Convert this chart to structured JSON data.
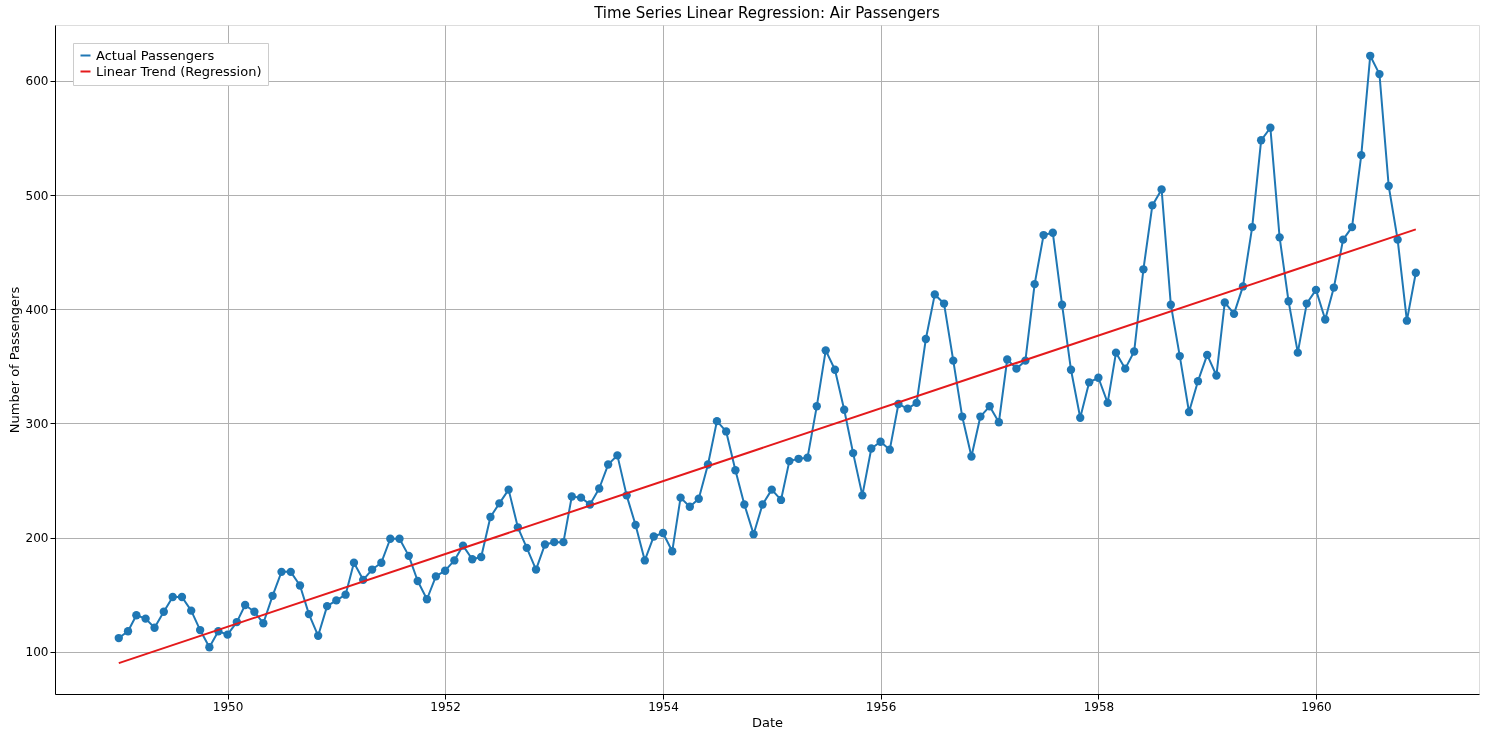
{
  "chart_data": {
    "type": "line",
    "title": "Time Series Linear Regression: Air Passengers",
    "xlabel": "Date",
    "ylabel": "Number of Passengers",
    "x": [
      "1949-01",
      "1949-02",
      "1949-03",
      "1949-04",
      "1949-05",
      "1949-06",
      "1949-07",
      "1949-08",
      "1949-09",
      "1949-10",
      "1949-11",
      "1949-12",
      "1950-01",
      "1950-02",
      "1950-03",
      "1950-04",
      "1950-05",
      "1950-06",
      "1950-07",
      "1950-08",
      "1950-09",
      "1950-10",
      "1950-11",
      "1950-12",
      "1951-01",
      "1951-02",
      "1951-03",
      "1951-04",
      "1951-05",
      "1951-06",
      "1951-07",
      "1951-08",
      "1951-09",
      "1951-10",
      "1951-11",
      "1951-12",
      "1952-01",
      "1952-02",
      "1952-03",
      "1952-04",
      "1952-05",
      "1952-06",
      "1952-07",
      "1952-08",
      "1952-09",
      "1952-10",
      "1952-11",
      "1952-12",
      "1953-01",
      "1953-02",
      "1953-03",
      "1953-04",
      "1953-05",
      "1953-06",
      "1953-07",
      "1953-08",
      "1953-09",
      "1953-10",
      "1953-11",
      "1953-12",
      "1954-01",
      "1954-02",
      "1954-03",
      "1954-04",
      "1954-05",
      "1954-06",
      "1954-07",
      "1954-08",
      "1954-09",
      "1954-10",
      "1954-11",
      "1954-12",
      "1955-01",
      "1955-02",
      "1955-03",
      "1955-04",
      "1955-05",
      "1955-06",
      "1955-07",
      "1955-08",
      "1955-09",
      "1955-10",
      "1955-11",
      "1955-12",
      "1956-01",
      "1956-02",
      "1956-03",
      "1956-04",
      "1956-05",
      "1956-06",
      "1956-07",
      "1956-08",
      "1956-09",
      "1956-10",
      "1956-11",
      "1956-12",
      "1957-01",
      "1957-02",
      "1957-03",
      "1957-04",
      "1957-05",
      "1957-06",
      "1957-07",
      "1957-08",
      "1957-09",
      "1957-10",
      "1957-11",
      "1957-12",
      "1958-01",
      "1958-02",
      "1958-03",
      "1958-04",
      "1958-05",
      "1958-06",
      "1958-07",
      "1958-08",
      "1958-09",
      "1958-10",
      "1958-11",
      "1958-12",
      "1959-01",
      "1959-02",
      "1959-03",
      "1959-04",
      "1959-05",
      "1959-06",
      "1959-07",
      "1959-08",
      "1959-09",
      "1959-10",
      "1959-11",
      "1959-12",
      "1960-01",
      "1960-02",
      "1960-03",
      "1960-04",
      "1960-05",
      "1960-06",
      "1960-07",
      "1960-08",
      "1960-09",
      "1960-10",
      "1960-11",
      "1960-12"
    ],
    "series": [
      {
        "name": "Actual Passengers",
        "color": "#1f77b4",
        "marker": "circle",
        "values": [
          112,
          118,
          132,
          129,
          121,
          135,
          148,
          148,
          136,
          119,
          104,
          118,
          115,
          126,
          141,
          135,
          125,
          149,
          170,
          170,
          158,
          133,
          114,
          140,
          145,
          150,
          178,
          163,
          172,
          178,
          199,
          199,
          184,
          162,
          146,
          166,
          171,
          180,
          193,
          181,
          183,
          218,
          230,
          242,
          209,
          191,
          172,
          194,
          196,
          196,
          236,
          235,
          229,
          243,
          264,
          272,
          237,
          211,
          180,
          201,
          204,
          188,
          235,
          227,
          234,
          264,
          302,
          293,
          259,
          229,
          203,
          229,
          242,
          233,
          267,
          269,
          270,
          315,
          364,
          347,
          312,
          274,
          237,
          278,
          284,
          277,
          317,
          313,
          318,
          374,
          413,
          405,
          355,
          306,
          271,
          306,
          315,
          301,
          356,
          348,
          355,
          422,
          465,
          467,
          404,
          347,
          305,
          336,
          340,
          318,
          362,
          348,
          363,
          435,
          491,
          505,
          404,
          359,
          310,
          337,
          360,
          342,
          406,
          396,
          420,
          472,
          548,
          559,
          463,
          407,
          362,
          405,
          417,
          391,
          419,
          461,
          472,
          535,
          622,
          606,
          508,
          461,
          390,
          432
        ]
      },
      {
        "name": "Linear Trend (Regression)",
        "color": "#e41a1c",
        "type": "line",
        "marker": "none",
        "x": [
          "1949-01",
          "1960-12"
        ],
        "values": [
          90,
          470
        ]
      }
    ],
    "xlim": [
      "1948-06",
      "1961-07"
    ],
    "xticks": [
      "1950",
      "1952",
      "1954",
      "1956",
      "1958",
      "1960"
    ],
    "ylim": [
      63,
      649
    ],
    "yticks": [
      100,
      200,
      300,
      400,
      500,
      600
    ],
    "grid": true,
    "legend": "top left",
    "line_style": "solid"
  }
}
